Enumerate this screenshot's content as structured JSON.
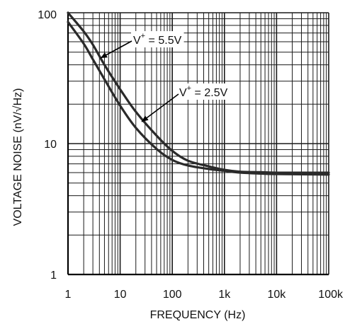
{
  "chart_data": {
    "type": "line",
    "title": "",
    "xlabel": "FREQUENCY (Hz)",
    "ylabel": "VOLTAGE NOISE (nV/√Hz)",
    "x_scale": "log",
    "y_scale": "log",
    "xlim": [
      1,
      100000
    ],
    "ylim": [
      1,
      100
    ],
    "grid": true,
    "x_tick_labels": [
      "1",
      "10",
      "100",
      "1k",
      "10k",
      "100k"
    ],
    "y_tick_labels": [
      "1",
      "10",
      "100"
    ],
    "colors": {
      "line": "#2a2a2a",
      "grid": "#1a1a1a",
      "background": "#ffffff",
      "text": "#111111"
    },
    "series": [
      {
        "x": [
          1,
          2,
          3,
          5,
          10,
          20,
          50,
          100,
          200,
          500,
          1000,
          2000,
          5000,
          10000,
          100000
        ],
        "y": [
          100,
          72,
          57,
          40,
          26,
          17.5,
          11.5,
          8.8,
          7.4,
          6.7,
          6.3,
          6.1,
          6.05,
          6.0,
          6.0
        ]
      },
      {
        "x": [
          1,
          2,
          3,
          5,
          10,
          20,
          50,
          100,
          200,
          500,
          1000,
          2000,
          5000,
          10000,
          100000
        ],
        "y": [
          85,
          58,
          44,
          31,
          19.5,
          13.2,
          9.1,
          7.5,
          6.8,
          6.4,
          6.2,
          6.0,
          5.9,
          5.85,
          5.8
        ]
      }
    ],
    "annotations": [
      {
        "base": "V",
        "sup": "+",
        "rest": " = 5.5V"
      },
      {
        "base": "V",
        "sup": "+",
        "rest": " = 2.5V"
      }
    ]
  }
}
